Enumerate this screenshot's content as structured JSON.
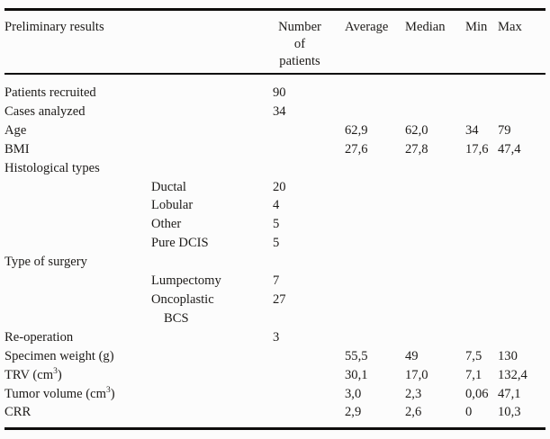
{
  "table": {
    "header": {
      "col1": "Preliminary results",
      "col_n": "Number of patients",
      "col_avg": "Average",
      "col_med": "Median",
      "col_min": "Min",
      "col_max": "Max"
    },
    "rows": [
      {
        "label": "Patients recruited",
        "n": "90"
      },
      {
        "label": "Cases analyzed",
        "n": "34"
      },
      {
        "label": "Age",
        "avg": "62,9",
        "med": "62,0",
        "min": "34",
        "max": "79"
      },
      {
        "label": "BMI",
        "avg": "27,6",
        "med": "27,8",
        "min": "17,6",
        "max": "47,4"
      },
      {
        "label": "Histological types"
      },
      {
        "sub": "Ductal",
        "n": "20"
      },
      {
        "sub": "Lobular",
        "n": "4"
      },
      {
        "sub": "Other",
        "n": "5"
      },
      {
        "sub": "Pure DCIS",
        "n": "5"
      },
      {
        "label": "Type of surgery"
      },
      {
        "sub": "Lumpectomy",
        "n": "7"
      },
      {
        "sub": "Oncoplastic BCS",
        "n": "27"
      },
      {
        "label": "Re-operation",
        "n": "3"
      },
      {
        "label": "Specimen weight (g)",
        "avg": "55,5",
        "med": "49",
        "min": "7,5",
        "max": "130"
      },
      {
        "label": "TRV (cm",
        "sup": "3",
        "post": ")",
        "avg": "30,1",
        "med": "17,0",
        "min": "7,1",
        "max": "132,4"
      },
      {
        "label": "Tumor volume (cm",
        "sup": "3",
        "post": ")",
        "avg": "3,0",
        "med": "2,3",
        "min": "0,06",
        "max": "47,1"
      },
      {
        "label": "CRR",
        "avg": "2,9",
        "med": "2,6",
        "min": "0",
        "max": "10,3"
      }
    ]
  },
  "colors": {
    "background": "#fcfcfc",
    "text": "#1d1b19",
    "rule": "#0e0d0c"
  }
}
